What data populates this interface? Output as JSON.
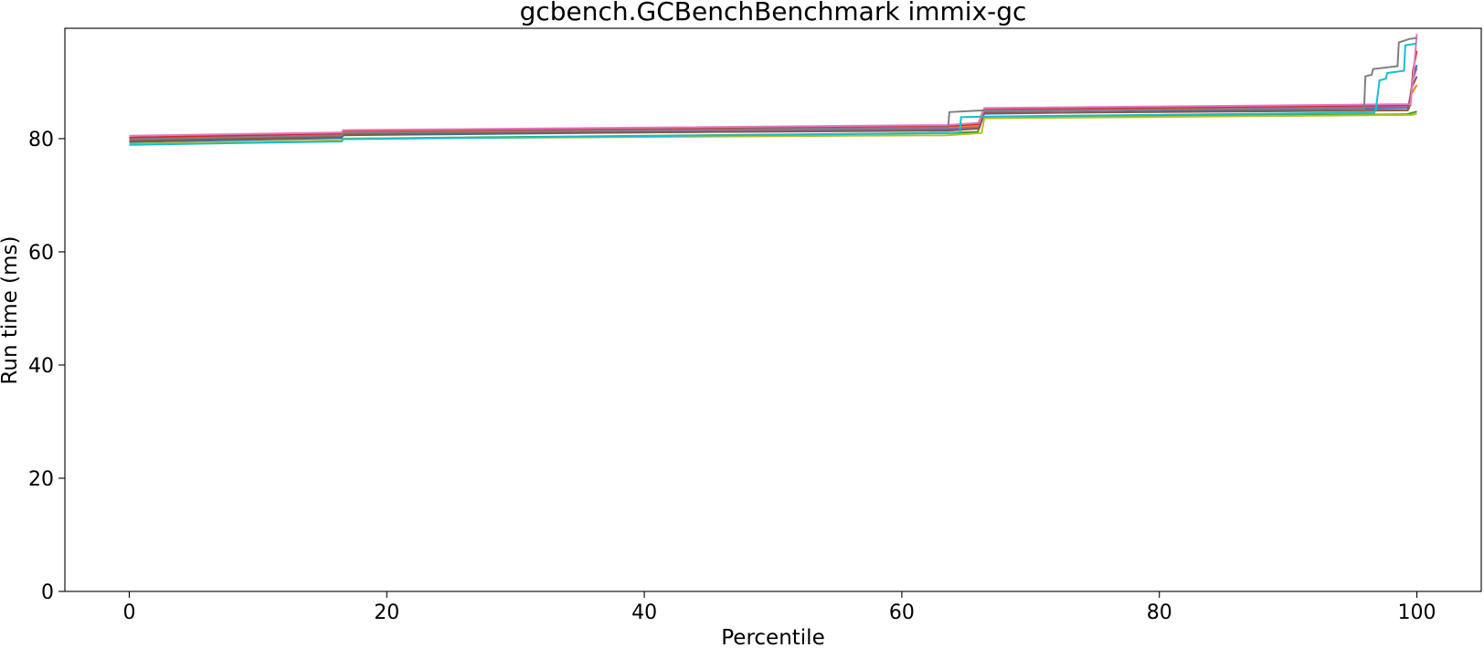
{
  "chart_data": {
    "type": "line",
    "title": "gcbench.GCBenchBenchmark immix-gc",
    "xlabel": "Percentile",
    "ylabel": "Run time (ms)",
    "xlim": [
      -5,
      105
    ],
    "ylim": [
      0,
      99.5
    ],
    "xticks": [
      0,
      20,
      40,
      60,
      80,
      100
    ],
    "yticks": [
      0,
      20,
      40,
      60,
      80
    ],
    "grid": false,
    "series": [
      {
        "color": "#1f77b4",
        "points": [
          [
            0,
            79.4
          ],
          [
            16.5,
            80.1
          ],
          [
            16.6,
            80.6
          ],
          [
            63.5,
            81.6
          ],
          [
            65.8,
            82.1
          ],
          [
            66.3,
            84.4
          ],
          [
            99.4,
            85.4
          ],
          [
            99.7,
            91.0
          ],
          [
            100,
            93.0
          ]
        ]
      },
      {
        "color": "#ff7f0e",
        "points": [
          [
            0,
            80.0
          ],
          [
            16.5,
            80.8
          ],
          [
            16.6,
            81.2
          ],
          [
            63.5,
            82.1
          ],
          [
            65.9,
            82.3
          ],
          [
            66.3,
            85.0
          ],
          [
            99.3,
            85.6
          ],
          [
            99.6,
            88.0
          ],
          [
            100,
            89.5
          ]
        ]
      },
      {
        "color": "#2ca02c",
        "points": [
          [
            0,
            79.0
          ],
          [
            16.5,
            79.6
          ],
          [
            16.6,
            80.0
          ],
          [
            63.5,
            81.0
          ],
          [
            65.9,
            81.2
          ],
          [
            66.3,
            83.8
          ],
          [
            99.2,
            84.3
          ],
          [
            100,
            84.8
          ]
        ]
      },
      {
        "color": "#d62728",
        "points": [
          [
            0,
            80.2
          ],
          [
            16.5,
            80.9
          ],
          [
            16.6,
            81.4
          ],
          [
            63.5,
            82.2
          ],
          [
            66.0,
            82.6
          ],
          [
            66.4,
            85.2
          ],
          [
            99.5,
            85.9
          ],
          [
            99.7,
            92.0
          ],
          [
            100,
            95.5
          ]
        ]
      },
      {
        "color": "#9467bd",
        "points": [
          [
            0,
            79.8
          ],
          [
            16.5,
            80.5
          ],
          [
            16.6,
            80.9
          ],
          [
            63.5,
            81.8
          ],
          [
            66.0,
            82.0
          ],
          [
            66.4,
            84.8
          ],
          [
            99.4,
            85.6
          ],
          [
            99.7,
            90.5
          ],
          [
            100,
            92.5
          ]
        ]
      },
      {
        "color": "#8c564b",
        "points": [
          [
            0,
            79.6
          ],
          [
            16.5,
            80.3
          ],
          [
            16.6,
            80.8
          ],
          [
            63.5,
            81.4
          ],
          [
            66.0,
            81.8
          ],
          [
            66.4,
            84.5
          ],
          [
            99.3,
            85.0
          ],
          [
            99.6,
            89.0
          ],
          [
            100,
            91.0
          ]
        ]
      },
      {
        "color": "#e377c2",
        "points": [
          [
            0,
            80.5
          ],
          [
            16.5,
            81.1
          ],
          [
            16.6,
            81.5
          ],
          [
            63.5,
            82.4
          ],
          [
            66.0,
            82.8
          ],
          [
            66.4,
            85.4
          ],
          [
            99.5,
            86.1
          ],
          [
            99.8,
            93.0
          ],
          [
            100,
            98.5
          ]
        ]
      },
      {
        "color": "#7f7f7f",
        "points": [
          [
            0,
            79.9
          ],
          [
            16.5,
            80.6
          ],
          [
            16.6,
            81.0
          ],
          [
            63.6,
            82.0
          ],
          [
            63.7,
            84.7
          ],
          [
            66.4,
            85.0
          ],
          [
            95.9,
            85.3
          ],
          [
            96.0,
            91.0
          ],
          [
            96.5,
            91.3
          ],
          [
            96.6,
            92.3
          ],
          [
            98.5,
            92.8
          ],
          [
            98.6,
            97.0
          ],
          [
            99.4,
            97.6
          ],
          [
            100,
            97.8
          ]
        ]
      },
      {
        "color": "#bcbd22",
        "points": [
          [
            0,
            79.1
          ],
          [
            16.5,
            79.7
          ],
          [
            16.6,
            80.0
          ],
          [
            63.5,
            80.6
          ],
          [
            66.2,
            81.0
          ],
          [
            66.4,
            83.6
          ],
          [
            99.6,
            84.2
          ],
          [
            100,
            84.4
          ]
        ]
      },
      {
        "color": "#17becf",
        "points": [
          [
            0,
            78.9
          ],
          [
            16.5,
            79.5
          ],
          [
            16.6,
            79.9
          ],
          [
            64.5,
            81.0
          ],
          [
            64.6,
            83.8
          ],
          [
            66.5,
            83.9
          ],
          [
            96.7,
            84.6
          ],
          [
            96.8,
            85.0
          ],
          [
            97.1,
            90.3
          ],
          [
            97.6,
            90.6
          ],
          [
            97.7,
            91.6
          ],
          [
            99.0,
            92.0
          ],
          [
            99.1,
            96.5
          ],
          [
            100,
            96.8
          ]
        ]
      }
    ]
  }
}
